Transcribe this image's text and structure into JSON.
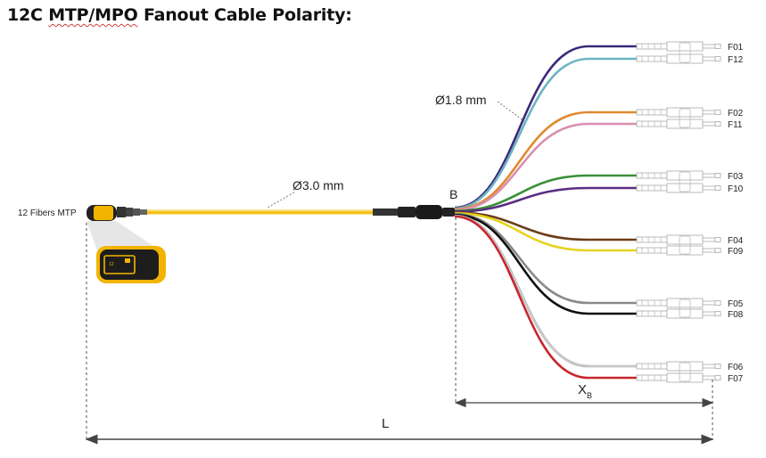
{
  "title": {
    "part1": "12C ",
    "part2": "MTP/MPO",
    "part3": " Fanout Cable Polarity:"
  },
  "labels": {
    "mtp": "12 Fibers MTP",
    "trunk_diameter": "Ø3.0 mm",
    "fiber_diameter": "Ø1.8 mm",
    "breakout_point": "B",
    "overall_length": "L",
    "xb_main": "X",
    "xb_sub": "B"
  },
  "fibers": [
    {
      "label": "F01",
      "color": "#3b2a7a"
    },
    {
      "label": "F12",
      "color": "#6cb4c4"
    },
    {
      "label": "F02",
      "color": "#e08a2e"
    },
    {
      "label": "F11",
      "color": "#d98fb0"
    },
    {
      "label": "F03",
      "color": "#3a8f3a"
    },
    {
      "label": "F10",
      "color": "#5a2d82"
    },
    {
      "label": "F04",
      "color": "#6b3d16"
    },
    {
      "label": "F09",
      "color": "#e7d21e"
    },
    {
      "label": "F05",
      "color": "#8a8a8a"
    },
    {
      "label": "F08",
      "color": "#111111"
    },
    {
      "label": "F06",
      "color": "#d8d8d8"
    },
    {
      "label": "F07",
      "color": "#c8262e"
    }
  ],
  "colors": {
    "cable": "#f2c21b",
    "connector": "#222222",
    "accent": "#f0b400"
  }
}
